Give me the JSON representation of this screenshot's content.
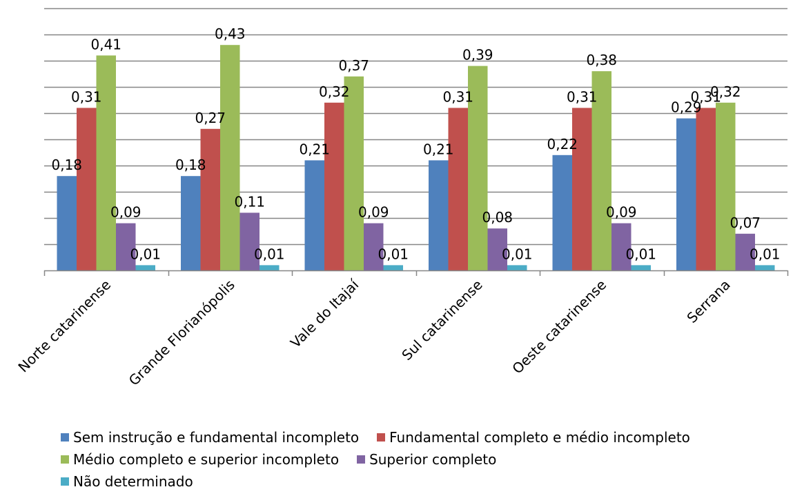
{
  "chart_data": {
    "type": "bar",
    "categories": [
      "Norte catarinense",
      "Grande Florianópolis",
      "Vale do Itajaí",
      "Sul catarinense",
      "Oeste catarinense",
      "Serrana"
    ],
    "series": [
      {
        "name": "Sem instrução e fundamental incompleto",
        "color": "#4F81BD",
        "values": [
          0.18,
          0.18,
          0.21,
          0.21,
          0.22,
          0.29
        ],
        "labels": [
          "0,18",
          "0,18",
          "0,21",
          "0,21",
          "0,22",
          "0,29"
        ]
      },
      {
        "name": "Fundamental completo e médio incompleto",
        "color": "#C0504D",
        "values": [
          0.31,
          0.27,
          0.32,
          0.31,
          0.31,
          0.31
        ],
        "labels": [
          "0,31",
          "0,27",
          "0,32",
          "0,31",
          "0,31",
          "0,31"
        ]
      },
      {
        "name": "Médio completo e superior incompleto",
        "color": "#9BBB59",
        "values": [
          0.41,
          0.43,
          0.37,
          0.39,
          0.38,
          0.32
        ],
        "labels": [
          "0,41",
          "0,43",
          "0,37",
          "0,39",
          "0,38",
          "0,32"
        ]
      },
      {
        "name": "Superior completo",
        "color": "#8064A2",
        "values": [
          0.09,
          0.11,
          0.09,
          0.08,
          0.09,
          0.07
        ],
        "labels": [
          "0,09",
          "0,11",
          "0,09",
          "0,08",
          "0,09",
          "0,07"
        ]
      },
      {
        "name": "Não determinado",
        "color": "#4BACC6",
        "values": [
          0.01,
          0.01,
          0.01,
          0.01,
          0.01,
          0.01
        ],
        "labels": [
          "0,01",
          "0,01",
          "0,01",
          "0,01",
          "0,01",
          "0,01"
        ]
      }
    ],
    "ylim": [
      0,
      0.5
    ],
    "gridlines": true,
    "gridline_step": 0.05,
    "legend_position": "bottom",
    "title": "",
    "xlabel": "",
    "ylabel": ""
  }
}
